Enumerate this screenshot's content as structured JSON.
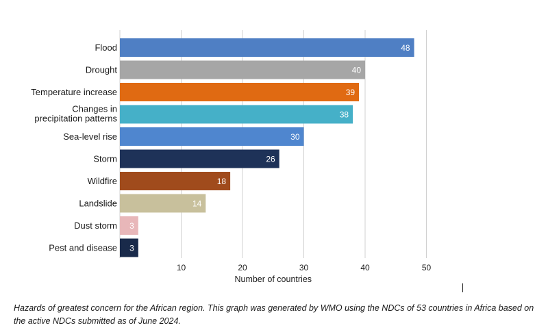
{
  "chart_data": {
    "type": "bar",
    "orientation": "horizontal",
    "categories": [
      "Flood",
      "Drought",
      "Temperature increase",
      "Changes in precipitation patterns",
      "Sea-level rise",
      "Storm",
      "Wildfire",
      "Landslide",
      "Dust storm",
      "Pest and disease"
    ],
    "category_lines": [
      [
        "Flood"
      ],
      [
        "Drought"
      ],
      [
        "Temperature increase"
      ],
      [
        "Changes in",
        "precipitation patterns"
      ],
      [
        "Sea-level rise"
      ],
      [
        "Storm"
      ],
      [
        "Wildfire"
      ],
      [
        "Landslide"
      ],
      [
        "Dust storm"
      ],
      [
        "Pest and disease"
      ]
    ],
    "values": [
      48,
      40,
      39,
      38,
      30,
      26,
      18,
      14,
      3,
      3
    ],
    "colors": [
      "#4f7fc4",
      "#a6a6a6",
      "#e06a12",
      "#45b0c8",
      "#4f86cf",
      "#1e3258",
      "#a04b1c",
      "#c8c09c",
      "#e8b7b9",
      "#192a4a"
    ],
    "xticks": [
      10,
      20,
      30,
      40,
      50
    ],
    "xlim": [
      0,
      50
    ],
    "xlabel": "Number of countries",
    "ylabel": "",
    "title": "",
    "grid": "vertical"
  },
  "caption": "Hazards of greatest concern for the African region. This graph was generated by WMO using the NDCs of 53 countries in Africa based on the active NDCs submitted as of June 2024."
}
